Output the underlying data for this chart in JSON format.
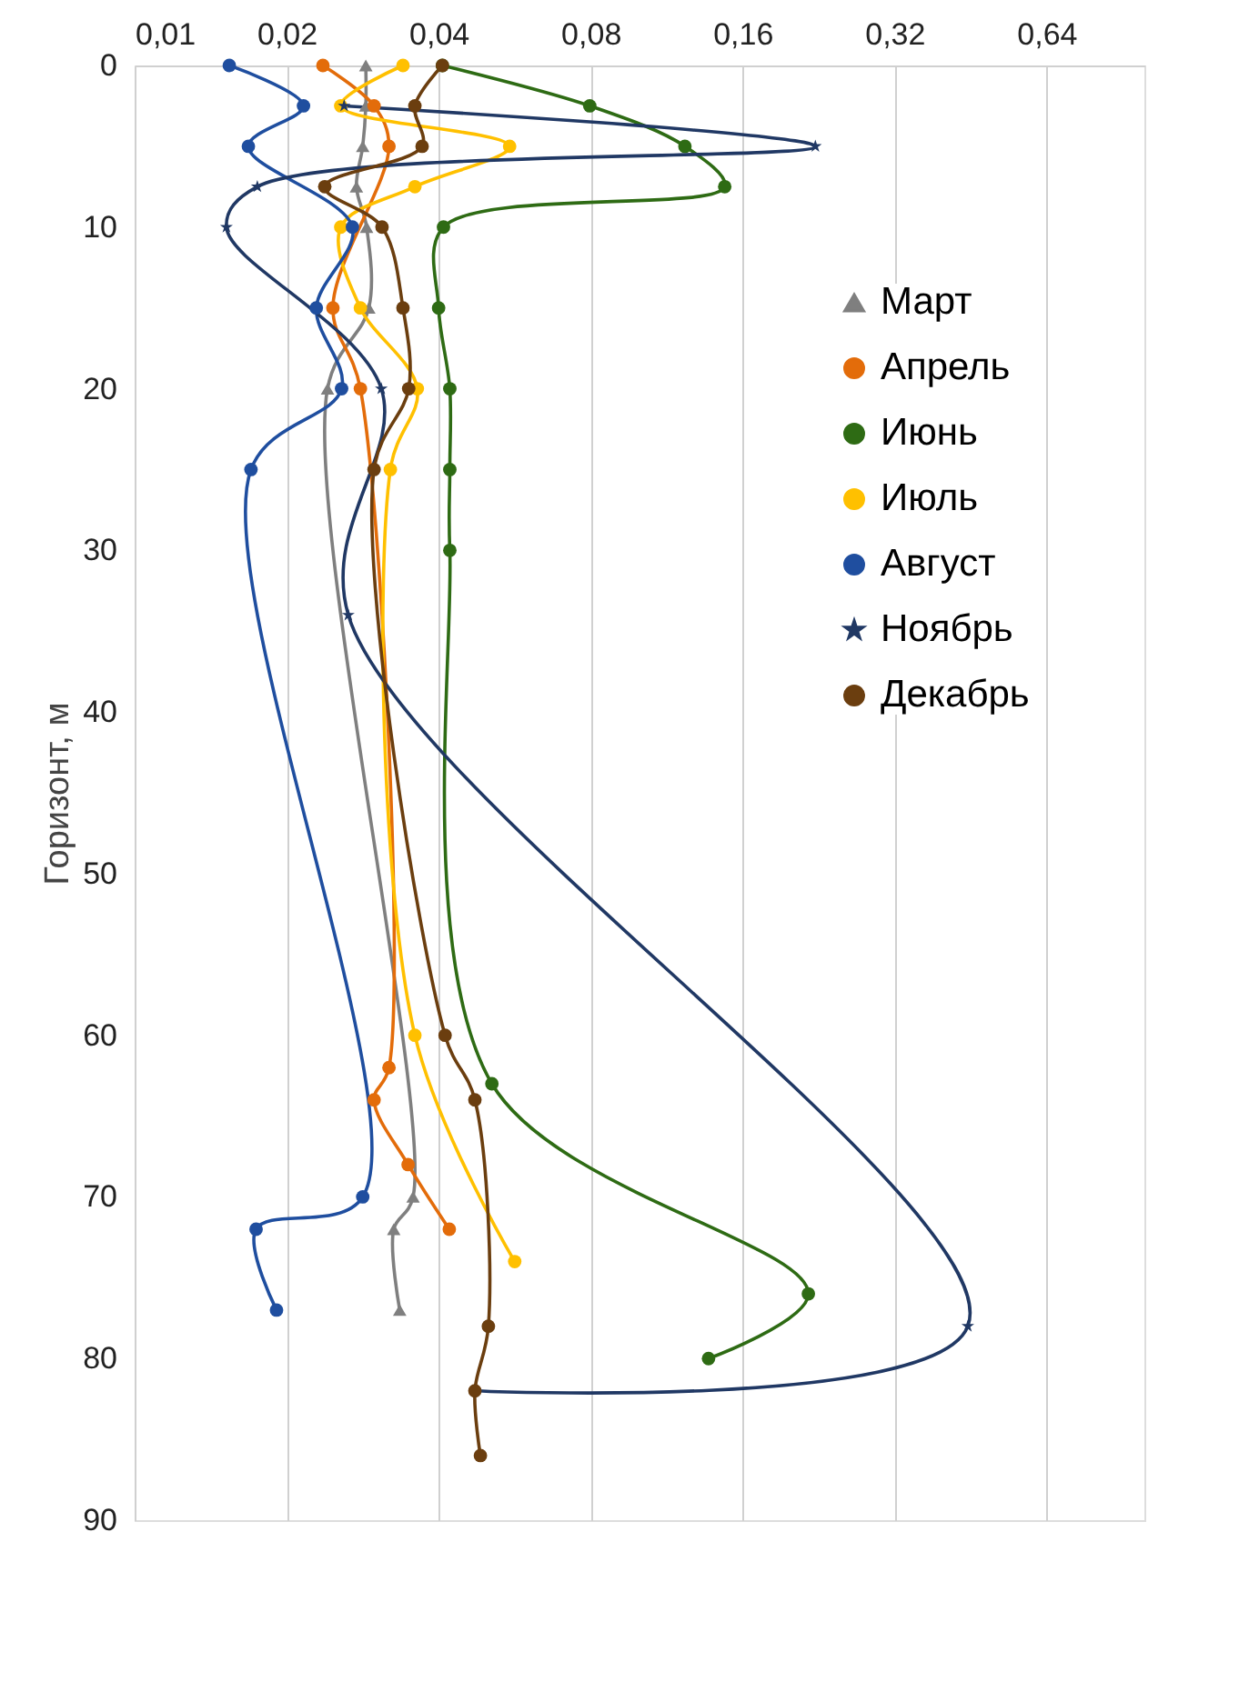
{
  "chart_data": {
    "type": "line",
    "ylabel": "Горизонт, м",
    "log": "x",
    "grid": "x",
    "legend": "right",
    "line_style": "solid",
    "xlim": [
      0.01,
      1.0
    ],
    "xticks": [
      {
        "value": 0.01,
        "label": "0,01"
      },
      {
        "value": 0.02,
        "label": "0,02"
      },
      {
        "value": 0.04,
        "label": "0,04"
      },
      {
        "value": 0.08,
        "label": "0,08"
      },
      {
        "value": 0.16,
        "label": "0,16"
      },
      {
        "value": 0.32,
        "label": "0,32"
      },
      {
        "value": 0.64,
        "label": "0,64"
      }
    ],
    "ylim": [
      90,
      0
    ],
    "yticks": [
      0,
      10,
      20,
      30,
      40,
      50,
      60,
      70,
      80,
      90
    ],
    "series": [
      {
        "name": "Март",
        "color": "#7f7f7f",
        "marker": "triangle",
        "x": [
          0.0287,
          0.0287,
          0.0283,
          0.0275,
          0.0288,
          0.0291,
          0.0241,
          0.0356,
          0.0326,
          0.0335
        ],
        "values": [
          0,
          2.5,
          5,
          7.5,
          10,
          15,
          20,
          70,
          72,
          77
        ]
      },
      {
        "name": "Апрель",
        "color": "#e36c0a",
        "marker": "circle",
        "x": [
          0.0236,
          0.0298,
          0.0319,
          0.0247,
          0.028,
          0.0319,
          0.0298,
          0.0348,
          0.042
        ],
        "values": [
          0,
          2.5,
          5,
          15,
          20,
          62,
          64,
          68,
          72
        ]
      },
      {
        "name": "Июнь",
        "color": "#2e6b14",
        "marker": "circle",
        "x": [
          0.0407,
          0.0797,
          0.123,
          0.1475,
          0.0409,
          0.04,
          0.0421,
          0.0421,
          0.0421,
          0.051,
          0.216,
          0.137
        ],
        "values": [
          0,
          2.5,
          5,
          7.5,
          10,
          15,
          20,
          25,
          30,
          63,
          76,
          80
        ]
      },
      {
        "name": "Июль",
        "color": "#ffc000",
        "marker": "circle",
        "x": [
          0.034,
          0.0256,
          0.0553,
          0.0359,
          0.0256,
          0.028,
          0.0363,
          0.0321,
          0.0359,
          0.0566
        ],
        "values": [
          0,
          2.5,
          5,
          7.5,
          10,
          15,
          20,
          25,
          60,
          74
        ]
      },
      {
        "name": "Август",
        "color": "#1f4e9f",
        "marker": "circle",
        "x": [
          0.0154,
          0.0216,
          0.0168,
          0.027,
          0.0229,
          0.0257,
          0.017,
          0.0283,
          0.0174,
          0.0191
        ],
        "values": [
          0,
          2.5,
          5,
          10,
          15,
          20,
          25,
          70,
          72,
          77
        ]
      },
      {
        "name": "Ноябрь",
        "color": "#203864",
        "marker": "star",
        "x": [
          0.026,
          0.223,
          0.0175,
          0.0152,
          0.0308,
          0.0265,
          0.447,
          0.0472
        ],
        "values": [
          2.5,
          5,
          7.5,
          10,
          20,
          34,
          78,
          82
        ]
      },
      {
        "name": "Декабрь",
        "color": "#6b3e0f",
        "marker": "circle",
        "x": [
          0.0407,
          0.0359,
          0.0371,
          0.0238,
          0.0309,
          0.034,
          0.0349,
          0.0298,
          0.0412,
          0.0472,
          0.0502,
          0.0472,
          0.0484
        ],
        "values": [
          0,
          2.5,
          5,
          7.5,
          10,
          15,
          20,
          25,
          60,
          64,
          78,
          82,
          86
        ]
      }
    ]
  }
}
